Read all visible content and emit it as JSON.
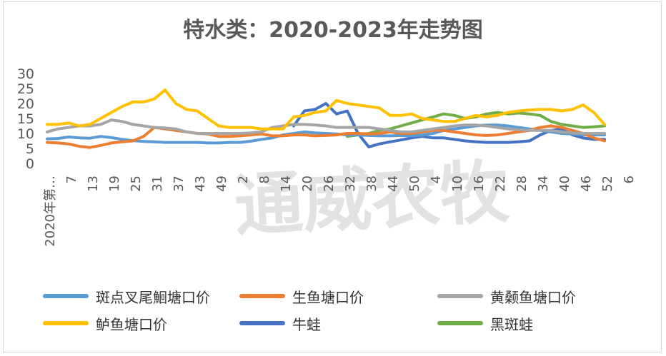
{
  "chart_data": {
    "type": "line",
    "title": "特水类：2020-2023年走势图",
    "watermark": "通威农牧",
    "ylim": [
      0,
      30
    ],
    "y_ticks": [
      "0",
      "5",
      "10",
      "15",
      "20",
      "25",
      "30"
    ],
    "x_tick_labels": [
      "2020年第…",
      "7",
      "13",
      "19",
      "25",
      "31",
      "37",
      "43",
      "49",
      "2",
      "8",
      "14",
      "20",
      "26",
      "32",
      "38",
      "44",
      "50",
      "4",
      "10",
      "16",
      "22",
      "28",
      "34",
      "40",
      "46",
      "52",
      "6"
    ],
    "grid": false,
    "legend_position": "bottom",
    "series": [
      {
        "name": "斑点叉尾鮰塘口价",
        "color": "#5B9BD5",
        "points": [
          [
            0,
            8.2
          ],
          [
            1,
            8.3
          ],
          [
            2,
            8.8
          ],
          [
            3,
            8.5
          ],
          [
            4,
            8.4
          ],
          [
            5,
            9
          ],
          [
            6,
            8.6
          ],
          [
            7,
            8
          ],
          [
            8,
            7.6
          ],
          [
            9,
            7.3
          ],
          [
            10,
            7.2
          ],
          [
            11,
            7
          ],
          [
            12,
            7
          ],
          [
            13,
            7
          ],
          [
            14,
            7
          ],
          [
            15,
            6.8
          ],
          [
            16,
            6.8
          ],
          [
            17,
            7
          ],
          [
            18,
            7
          ],
          [
            19,
            7.4
          ],
          [
            20,
            8
          ],
          [
            21,
            8.5
          ],
          [
            22,
            9.5
          ],
          [
            23,
            10
          ],
          [
            24,
            10.5
          ],
          [
            25,
            10.2
          ],
          [
            26,
            10
          ],
          [
            27,
            9.8
          ],
          [
            28,
            9.5
          ],
          [
            29,
            9.5
          ],
          [
            30,
            9.3
          ],
          [
            31,
            9.2
          ],
          [
            32,
            9.2
          ],
          [
            33,
            9.3
          ],
          [
            34,
            9.2
          ],
          [
            35,
            9.5
          ],
          [
            36,
            10
          ],
          [
            37,
            11
          ],
          [
            38,
            11.5
          ],
          [
            39,
            12
          ],
          [
            40,
            12.5
          ],
          [
            41,
            12.8
          ],
          [
            42,
            12.8
          ],
          [
            43,
            12.5
          ],
          [
            44,
            12
          ],
          [
            45,
            11.5
          ],
          [
            46,
            11
          ],
          [
            47,
            10.5
          ],
          [
            48,
            10
          ],
          [
            49,
            9.8
          ],
          [
            50,
            9.5
          ],
          [
            51,
            9.5
          ],
          [
            52,
            9.5
          ]
        ]
      },
      {
        "name": "生鱼塘口价",
        "color": "#ED7D31",
        "points": [
          [
            0,
            7
          ],
          [
            1,
            6.8
          ],
          [
            2,
            6.5
          ],
          [
            3,
            5.7
          ],
          [
            4,
            5.3
          ],
          [
            5,
            6
          ],
          [
            6,
            6.8
          ],
          [
            7,
            7.2
          ],
          [
            8,
            7.5
          ],
          [
            9,
            9
          ],
          [
            10,
            12
          ],
          [
            11,
            11.5
          ],
          [
            12,
            11
          ],
          [
            13,
            10.5
          ],
          [
            14,
            10
          ],
          [
            15,
            9.8
          ],
          [
            16,
            9
          ],
          [
            17,
            9
          ],
          [
            18,
            9.2
          ],
          [
            19,
            9.5
          ],
          [
            20,
            9.8
          ],
          [
            21,
            9.2
          ],
          [
            22,
            9.2
          ],
          [
            23,
            9.5
          ],
          [
            24,
            9.5
          ],
          [
            25,
            9.2
          ],
          [
            26,
            9.3
          ],
          [
            27,
            9.5
          ],
          [
            28,
            10
          ],
          [
            29,
            10
          ],
          [
            30,
            9.8
          ],
          [
            31,
            10
          ],
          [
            32,
            10.5
          ],
          [
            33,
            10
          ],
          [
            34,
            10
          ],
          [
            35,
            10.5
          ],
          [
            36,
            11
          ],
          [
            37,
            11
          ],
          [
            38,
            10.5
          ],
          [
            39,
            10
          ],
          [
            40,
            9.5
          ],
          [
            41,
            9.3
          ],
          [
            42,
            9.5
          ],
          [
            43,
            10
          ],
          [
            44,
            10.5
          ],
          [
            45,
            11
          ],
          [
            46,
            12
          ],
          [
            47,
            12.5
          ],
          [
            48,
            12
          ],
          [
            49,
            11
          ],
          [
            50,
            10
          ],
          [
            51,
            8.5
          ],
          [
            52,
            7.5
          ]
        ]
      },
      {
        "name": "黄颡鱼塘口价",
        "color": "#A5A5A5",
        "points": [
          [
            0,
            10.5
          ],
          [
            1,
            11.5
          ],
          [
            2,
            12
          ],
          [
            3,
            12.5
          ],
          [
            4,
            12.5
          ],
          [
            5,
            13
          ],
          [
            6,
            14.5
          ],
          [
            7,
            14
          ],
          [
            8,
            13
          ],
          [
            9,
            12.5
          ],
          [
            10,
            12
          ],
          [
            11,
            11.8
          ],
          [
            12,
            11.5
          ],
          [
            13,
            10.5
          ],
          [
            14,
            10
          ],
          [
            15,
            10
          ],
          [
            16,
            10
          ],
          [
            17,
            10
          ],
          [
            18,
            10
          ],
          [
            19,
            10.2
          ],
          [
            20,
            10.5
          ],
          [
            21,
            12
          ],
          [
            22,
            12.5
          ],
          [
            23,
            13
          ],
          [
            24,
            13
          ],
          [
            25,
            12.8
          ],
          [
            26,
            12.5
          ],
          [
            27,
            12
          ],
          [
            28,
            12
          ],
          [
            29,
            12
          ],
          [
            30,
            12
          ],
          [
            31,
            11.5
          ],
          [
            32,
            11
          ],
          [
            33,
            10.5
          ],
          [
            34,
            10.5
          ],
          [
            35,
            11
          ],
          [
            36,
            11.5
          ],
          [
            37,
            12
          ],
          [
            38,
            12.5
          ],
          [
            39,
            12.8
          ],
          [
            40,
            12.8
          ],
          [
            41,
            12.5
          ],
          [
            42,
            12
          ],
          [
            43,
            11.5
          ],
          [
            44,
            11.2
          ],
          [
            45,
            11
          ],
          [
            46,
            11
          ],
          [
            47,
            11
          ],
          [
            48,
            10.5
          ],
          [
            49,
            10.2
          ],
          [
            50,
            10
          ],
          [
            51,
            10
          ],
          [
            52,
            10
          ]
        ]
      },
      {
        "name": "鲈鱼塘口价",
        "color": "#FFC000",
        "points": [
          [
            0,
            13
          ],
          [
            1,
            13
          ],
          [
            2,
            13.5
          ],
          [
            3,
            12.5
          ],
          [
            4,
            13
          ],
          [
            5,
            15
          ],
          [
            6,
            17
          ],
          [
            7,
            19
          ],
          [
            8,
            20.5
          ],
          [
            9,
            20.5
          ],
          [
            10,
            21.5
          ],
          [
            11,
            24.5
          ],
          [
            12,
            20
          ],
          [
            13,
            18
          ],
          [
            14,
            17.5
          ],
          [
            15,
            15
          ],
          [
            16,
            12.5
          ],
          [
            17,
            12
          ],
          [
            18,
            12
          ],
          [
            19,
            12
          ],
          [
            20,
            11.5
          ],
          [
            21,
            11.5
          ],
          [
            22,
            11.5
          ],
          [
            23,
            15.5
          ],
          [
            24,
            16
          ],
          [
            25,
            17
          ],
          [
            26,
            17.5
          ],
          [
            27,
            21
          ],
          [
            28,
            20
          ],
          [
            29,
            19.5
          ],
          [
            30,
            19
          ],
          [
            31,
            18.5
          ],
          [
            32,
            16
          ],
          [
            33,
            16
          ],
          [
            34,
            16.5
          ],
          [
            35,
            15
          ],
          [
            36,
            14.5
          ],
          [
            37,
            14
          ],
          [
            38,
            14
          ],
          [
            39,
            15
          ],
          [
            40,
            16
          ],
          [
            41,
            15.5
          ],
          [
            42,
            16
          ],
          [
            43,
            17
          ],
          [
            44,
            17.5
          ],
          [
            45,
            17.8
          ],
          [
            46,
            18
          ],
          [
            47,
            18
          ],
          [
            48,
            17.5
          ],
          [
            49,
            18
          ],
          [
            50,
            19.5
          ],
          [
            51,
            17
          ],
          [
            52,
            13
          ]
        ]
      },
      {
        "name": "牛蛙",
        "color": "#4472C4",
        "points": [
          [
            23,
            12.5
          ],
          [
            24,
            17.5
          ],
          [
            25,
            18
          ],
          [
            26,
            20
          ],
          [
            27,
            16.5
          ],
          [
            28,
            17.5
          ],
          [
            29,
            10
          ],
          [
            30,
            5.5
          ],
          [
            31,
            6.5
          ],
          [
            32,
            7.2
          ],
          [
            33,
            7.8
          ],
          [
            34,
            8.5
          ],
          [
            35,
            9
          ],
          [
            36,
            8.5
          ],
          [
            37,
            8.5
          ],
          [
            38,
            8
          ],
          [
            39,
            7.5
          ],
          [
            40,
            7.2
          ],
          [
            41,
            7
          ],
          [
            42,
            7
          ],
          [
            43,
            7
          ],
          [
            44,
            7.2
          ],
          [
            45,
            7.5
          ],
          [
            46,
            9.5
          ],
          [
            47,
            11
          ],
          [
            48,
            11.5
          ],
          [
            49,
            9.5
          ],
          [
            50,
            8.5
          ],
          [
            51,
            8
          ],
          [
            52,
            8
          ]
        ]
      },
      {
        "name": "黑斑蛙",
        "color": "#70AD47",
        "points": [
          [
            28,
            9
          ],
          [
            29,
            9.5
          ],
          [
            30,
            10
          ],
          [
            31,
            11
          ],
          [
            32,
            11.5
          ],
          [
            33,
            12.5
          ],
          [
            34,
            13.5
          ],
          [
            35,
            14.5
          ],
          [
            36,
            15.5
          ],
          [
            37,
            16.5
          ],
          [
            38,
            16
          ],
          [
            39,
            15
          ],
          [
            40,
            15.5
          ],
          [
            41,
            16.5
          ],
          [
            42,
            17
          ],
          [
            43,
            16.5
          ],
          [
            44,
            16.8
          ],
          [
            45,
            16.5
          ],
          [
            46,
            16
          ],
          [
            47,
            14
          ],
          [
            48,
            13
          ],
          [
            49,
            12.5
          ],
          [
            50,
            12
          ],
          [
            51,
            12.2
          ],
          [
            52,
            12.5
          ]
        ]
      }
    ]
  }
}
